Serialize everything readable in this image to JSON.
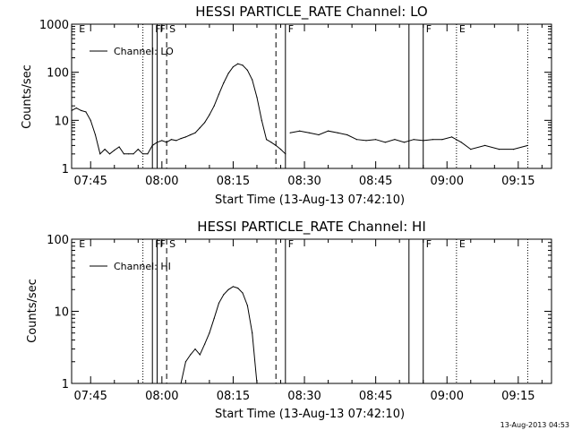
{
  "chart_data": [
    {
      "type": "line",
      "title": "HESSI PARTICLE_RATE Channel: LO",
      "xlabel": "Start Time (13-Aug-13 07:42:10)",
      "ylabel": "Counts/sec",
      "y_scale": "log",
      "ylim": [
        1,
        1000
      ],
      "xlim": [
        "07:41",
        "09:22"
      ],
      "x_ticks": [
        "07:45",
        "08:00",
        "08:15",
        "08:30",
        "08:45",
        "09:00",
        "09:15"
      ],
      "y_ticks": [
        "1",
        "10",
        "100",
        "1000"
      ],
      "grid": false,
      "legend": {
        "position": "top-left",
        "entries": [
          "Channel: LO"
        ]
      },
      "series": [
        {
          "name": "Channel: LO",
          "segments": [
            [
              [
                "07:41",
                16
              ],
              [
                "07:42",
                18
              ],
              [
                "07:43",
                16
              ],
              [
                "07:44",
                15
              ],
              [
                "07:45",
                10
              ],
              [
                "07:46",
                5
              ],
              [
                "07:47",
                2
              ],
              [
                "07:48",
                2.5
              ],
              [
                "07:49",
                2
              ],
              [
                "07:50",
                2.4
              ],
              [
                "07:51",
                2.8
              ],
              [
                "07:52",
                2
              ],
              [
                "07:53",
                2
              ],
              [
                "07:54",
                2
              ],
              [
                "07:55",
                2.5
              ],
              [
                "07:56",
                2
              ],
              [
                "07:57",
                2
              ],
              [
                "07:58",
                3
              ],
              [
                "07:59",
                3.5
              ],
              [
                "08:00",
                3.8
              ],
              [
                "08:01",
                3.5
              ],
              [
                "08:02",
                4
              ],
              [
                "08:03",
                3.8
              ],
              [
                "08:04",
                4.2
              ],
              [
                "08:05",
                4.5
              ],
              [
                "08:06",
                5
              ],
              [
                "08:07",
                5.5
              ],
              [
                "08:08",
                7
              ],
              [
                "08:09",
                9
              ],
              [
                "08:10",
                13
              ],
              [
                "08:11",
                20
              ],
              [
                "08:12",
                35
              ],
              [
                "08:13",
                60
              ],
              [
                "08:14",
                95
              ],
              [
                "08:15",
                130
              ],
              [
                "08:16",
                150
              ],
              [
                "08:17",
                140
              ],
              [
                "08:18",
                110
              ],
              [
                "08:19",
                70
              ],
              [
                "08:20",
                30
              ],
              [
                "08:21",
                10
              ],
              [
                "08:22",
                4
              ],
              [
                "08:23",
                3.5
              ],
              [
                "08:24",
                3
              ],
              [
                "08:25",
                2.5
              ],
              [
                "08:26",
                2
              ]
            ],
            [
              [
                "08:27",
                5.5
              ],
              [
                "08:29",
                6
              ],
              [
                "08:31",
                5.5
              ],
              [
                "08:33",
                5
              ],
              [
                "08:35",
                6
              ],
              [
                "08:37",
                5.5
              ],
              [
                "08:39",
                5
              ],
              [
                "08:41",
                4
              ],
              [
                "08:43",
                3.8
              ],
              [
                "08:45",
                4
              ],
              [
                "08:47",
                3.5
              ],
              [
                "08:49",
                4
              ],
              [
                "08:51",
                3.5
              ],
              [
                "08:53",
                4
              ],
              [
                "08:55",
                3.8
              ],
              [
                "08:57",
                4
              ],
              [
                "08:59",
                4
              ],
              [
                "09:01",
                4.5
              ],
              [
                "09:03",
                3.5
              ],
              [
                "09:05",
                2.5
              ],
              [
                "09:08",
                3
              ],
              [
                "09:11",
                2.5
              ],
              [
                "09:14",
                2.5
              ],
              [
                "09:17",
                3
              ]
            ]
          ]
        }
      ],
      "markers": [
        {
          "label": "F",
          "time": "07:58",
          "style": "solid"
        },
        {
          "label": "F",
          "time": "07:59",
          "style": "solid"
        },
        {
          "label": "S",
          "time": "08:01",
          "style": "dashed"
        },
        {
          "label": "",
          "time": "08:24",
          "style": "dashed"
        },
        {
          "label": "F",
          "time": "08:26",
          "style": "solid"
        },
        {
          "label": "",
          "time": "08:52",
          "style": "solid"
        },
        {
          "label": "F",
          "time": "08:55",
          "style": "solid"
        },
        {
          "label": "",
          "time": "07:56",
          "style": "dotted"
        },
        {
          "label": "E",
          "time": "09:02",
          "style": "dotted"
        },
        {
          "label": "",
          "time": "09:17",
          "style": "dotted"
        },
        {
          "label": "E",
          "time": "07:42",
          "style": "none"
        }
      ]
    },
    {
      "type": "line",
      "title": "HESSI PARTICLE_RATE Channel: HI",
      "xlabel": "Start Time (13-Aug-13 07:42:10)",
      "ylabel": "Counts/sec",
      "y_scale": "log",
      "ylim": [
        1,
        100
      ],
      "xlim": [
        "07:41",
        "09:22"
      ],
      "x_ticks": [
        "07:45",
        "08:00",
        "08:15",
        "08:30",
        "08:45",
        "09:00",
        "09:15"
      ],
      "y_ticks": [
        "1",
        "10",
        "100"
      ],
      "grid": false,
      "legend": {
        "position": "top-left",
        "entries": [
          "Channel: HI"
        ]
      },
      "series": [
        {
          "name": "Channel: HI",
          "segments": [
            [
              [
                "08:04",
                1
              ],
              [
                "08:05",
                2
              ],
              [
                "08:06",
                2.5
              ],
              [
                "08:07",
                3
              ],
              [
                "08:08",
                2.5
              ],
              [
                "08:09",
                3.5
              ],
              [
                "08:10",
                5
              ],
              [
                "08:11",
                8
              ],
              [
                "08:12",
                13
              ],
              [
                "08:13",
                17
              ],
              [
                "08:14",
                20
              ],
              [
                "08:15",
                22
              ],
              [
                "08:16",
                21
              ],
              [
                "08:17",
                18
              ],
              [
                "08:18",
                12
              ],
              [
                "08:19",
                5
              ],
              [
                "08:20",
                1
              ]
            ]
          ]
        }
      ],
      "markers": [
        {
          "label": "F",
          "time": "07:58",
          "style": "solid"
        },
        {
          "label": "F",
          "time": "07:59",
          "style": "solid"
        },
        {
          "label": "S",
          "time": "08:01",
          "style": "dashed"
        },
        {
          "label": "",
          "time": "08:24",
          "style": "dashed"
        },
        {
          "label": "F",
          "time": "08:26",
          "style": "solid"
        },
        {
          "label": "",
          "time": "08:52",
          "style": "solid"
        },
        {
          "label": "F",
          "time": "08:55",
          "style": "solid"
        },
        {
          "label": "",
          "time": "07:56",
          "style": "dotted"
        },
        {
          "label": "E",
          "time": "09:02",
          "style": "dotted"
        },
        {
          "label": "",
          "time": "09:17",
          "style": "dotted"
        },
        {
          "label": "E",
          "time": "07:42",
          "style": "none"
        }
      ]
    }
  ],
  "footer": {
    "timestamp": "13-Aug-2013 04:53"
  }
}
